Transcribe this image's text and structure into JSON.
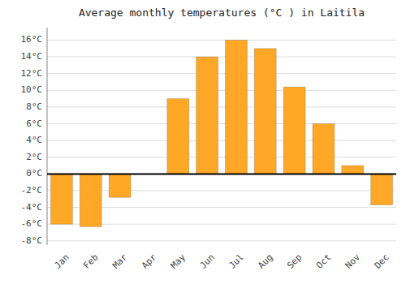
{
  "chart_data": {
    "type": "bar",
    "title": "Average monthly temperatures (°C ) in Laitila",
    "categories": [
      "Jan",
      "Feb",
      "Mar",
      "Apr",
      "May",
      "Jun",
      "Jul",
      "Aug",
      "Sep",
      "Oct",
      "Nov",
      "Dec"
    ],
    "values": [
      -6.0,
      -6.3,
      -2.8,
      0.0,
      9.0,
      14.0,
      16.0,
      15.0,
      10.4,
      6.0,
      1.0,
      -3.7
    ],
    "color": "#FFA726",
    "ylim": [
      -8.5,
      17.5
    ],
    "yticks": [
      {
        "value": -8,
        "label": "-8°C"
      },
      {
        "value": -6,
        "label": "-6°C"
      },
      {
        "value": -4,
        "label": "-4°C"
      },
      {
        "value": -2,
        "label": "-2°C"
      },
      {
        "value": 0,
        "label": "0°C"
      },
      {
        "value": 2,
        "label": "2°C"
      },
      {
        "value": 4,
        "label": "4°C"
      },
      {
        "value": 6,
        "label": "6°C"
      },
      {
        "value": 8,
        "label": "8°C"
      },
      {
        "value": 10,
        "label": "10°C"
      },
      {
        "value": 12,
        "label": "12°C"
      },
      {
        "value": 14,
        "label": "14°C"
      },
      {
        "value": 16,
        "label": "16°C"
      }
    ],
    "grid": true
  }
}
